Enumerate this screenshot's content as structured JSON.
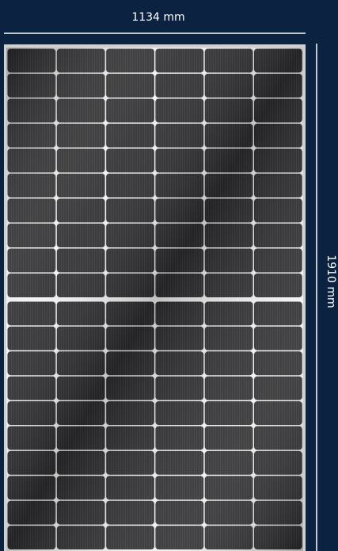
{
  "dimensions": {
    "width_label": "1134 mm",
    "height_label": "1910 mm"
  }
}
